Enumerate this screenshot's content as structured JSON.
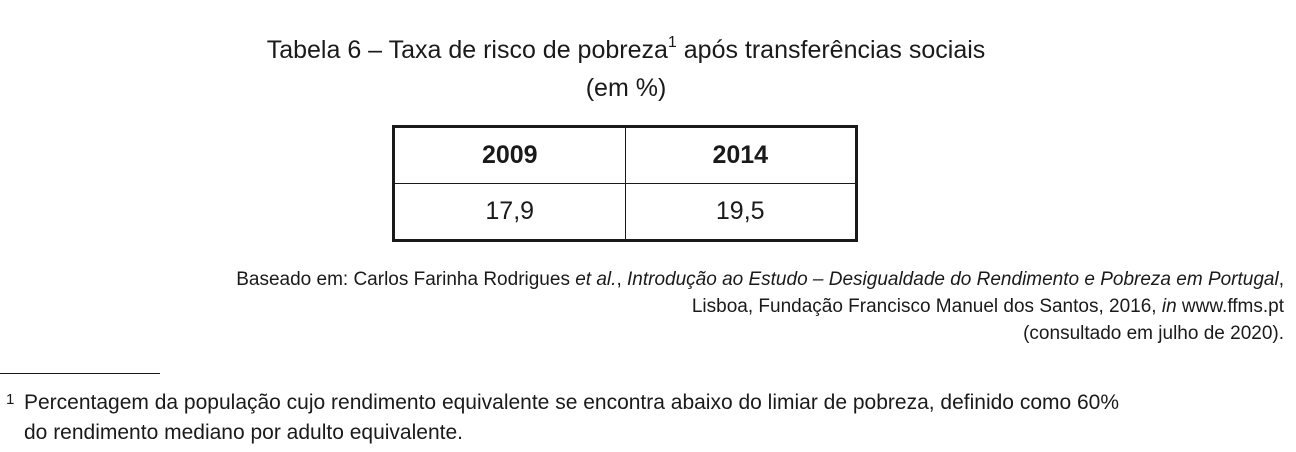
{
  "table_title": {
    "main": "Tabela 6 – Taxa de risco de pobreza",
    "footnote_ref": "1",
    "rest": " após transferências sociais",
    "unit": "(em %)"
  },
  "table": {
    "headers": [
      "2009",
      "2014"
    ],
    "rows": [
      [
        "17,9",
        "19,5"
      ]
    ]
  },
  "source": {
    "prefix": "Baseado em: Carlos Farinha Rodrigues ",
    "etal": "et al.",
    "sep": ", ",
    "book_title": "Introdução ao Estudo – Desigualdade do Rendimento e Pobreza em Portugal",
    "line1_end": ",",
    "line2_pre": "Lisboa, Fundação Francisco Manuel dos Santos, 2016, ",
    "in": "in",
    "url": " www.ffms.pt",
    "line3": "(consultado em julho de 2020)."
  },
  "footnote": {
    "mark": "1",
    "line1": "Percentagem da população cujo rendimento equivalente se encontra abaixo do limiar de pobreza, definido como 60%",
    "line2": "do rendimento mediano por adulto equivalente."
  }
}
